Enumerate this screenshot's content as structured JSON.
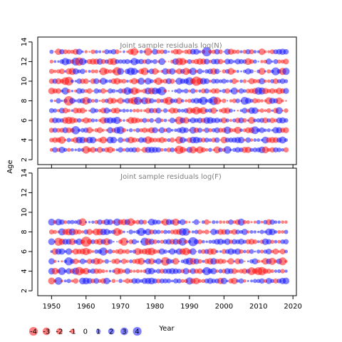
{
  "chart_data": {
    "type": "scatter",
    "subtype": "bubble-residuals",
    "shared_ylabel": "Age",
    "shared_xlabel": "Year",
    "colors": {
      "positive": "#0000FF",
      "negative": "#FF0000",
      "bubble_alpha": 0.5,
      "panel_title": "#808080"
    },
    "panels": [
      {
        "title": "Joint sample residuals log(N)",
        "xlim": [
          1946,
          2021
        ],
        "ylim": [
          1.5,
          14.5
        ],
        "xticks": [
          1950,
          1960,
          1970,
          1980,
          1990,
          2000,
          2010,
          2020
        ],
        "show_xtick_labels": false,
        "yticks": [
          2,
          4,
          6,
          8,
          10,
          12,
          14
        ],
        "years": [
          1950,
          2018
        ],
        "ages": [
          3,
          13
        ]
      },
      {
        "title": "Joint sample residuals log(F)",
        "xlim": [
          1946,
          2021
        ],
        "ylim": [
          1.5,
          14.5
        ],
        "xticks": [
          1950,
          1960,
          1970,
          1980,
          1990,
          2000,
          2010,
          2020
        ],
        "xtick_labels": [
          "1950",
          "1960",
          "1970",
          "1980",
          "1990",
          "2000",
          "2010",
          "2020"
        ],
        "show_xtick_labels": true,
        "yticks": [
          2,
          4,
          6,
          8,
          10,
          12,
          14
        ],
        "years": [
          1950,
          2018
        ],
        "ages": [
          3,
          9
        ]
      }
    ],
    "legend": {
      "values": [
        -4,
        -3,
        -2,
        -1,
        0,
        1,
        2,
        3,
        4
      ],
      "labels": [
        "-4",
        "-3",
        "-2",
        "-1",
        "0",
        "1",
        "2",
        "3",
        "4"
      ]
    }
  }
}
